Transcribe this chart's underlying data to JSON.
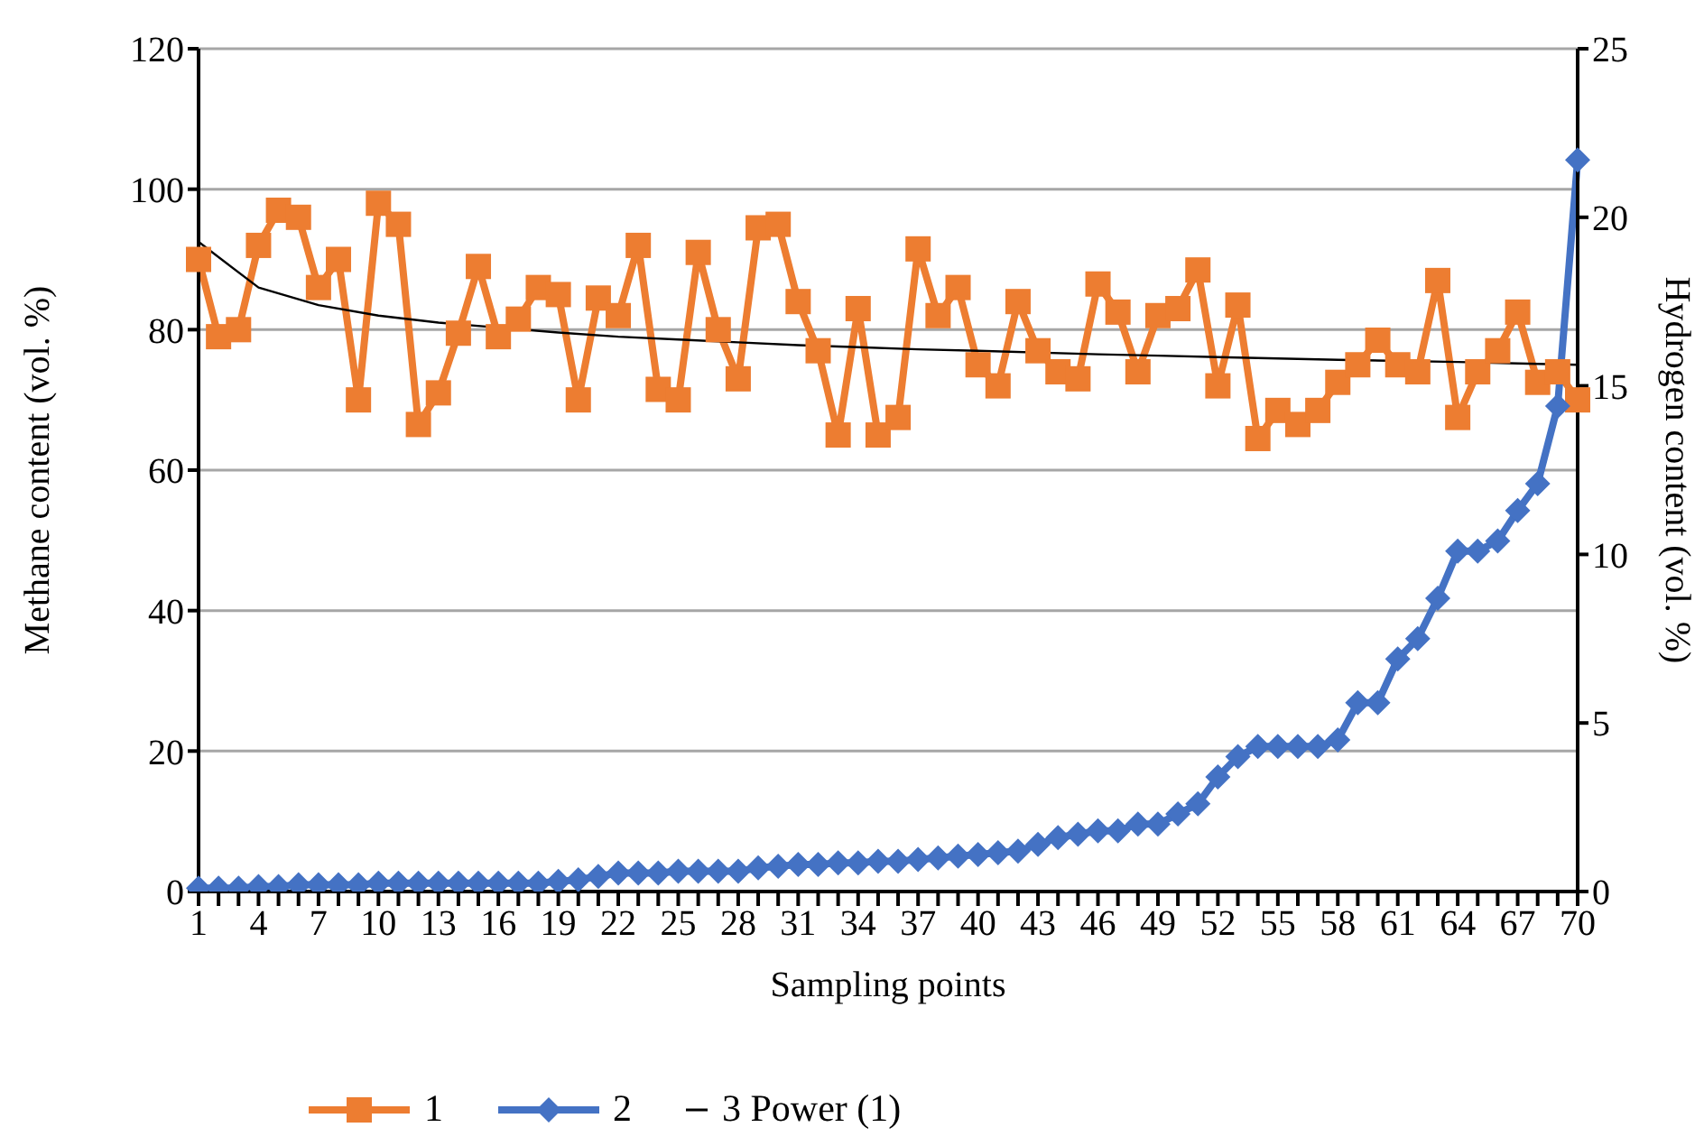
{
  "chart_data": {
    "type": "line",
    "xlabel": "Sampling points",
    "ylabel": "Methane content (vol. %)",
    "y2label": "Hydrogen content (vol. %)",
    "categories": [
      "1",
      null,
      null,
      "4",
      null,
      null,
      "7",
      null,
      null,
      "10",
      null,
      null,
      "13",
      null,
      null,
      "16",
      null,
      null,
      "19",
      null,
      null,
      "22",
      null,
      null,
      "25",
      null,
      null,
      "28",
      null,
      null,
      "31",
      null,
      null,
      "34",
      null,
      null,
      "37",
      null,
      null,
      "40",
      null,
      null,
      "43",
      null,
      null,
      "46",
      null,
      null,
      "49",
      null,
      null,
      "52",
      null,
      null,
      "55",
      null,
      null,
      "58",
      null,
      null,
      "61",
      null,
      null,
      "64",
      null,
      null,
      "67",
      null,
      null,
      "70"
    ],
    "series": [
      {
        "name": "1",
        "color": "#ed7d31",
        "marker": "square",
        "values": [
          90,
          79,
          80,
          92,
          97,
          96,
          86,
          90,
          70,
          98,
          95,
          66.5,
          71,
          79.5,
          89,
          79,
          81.5,
          86,
          85,
          70,
          84.5,
          82,
          92,
          71.5,
          70,
          91,
          80,
          73,
          94.5,
          95,
          84,
          77,
          65,
          83,
          65,
          67.5,
          91.5,
          82,
          86,
          75,
          72,
          84,
          77,
          74,
          73,
          86.5,
          82.5,
          74,
          82,
          83,
          88.5,
          72,
          83.5,
          64.5,
          68.5,
          66.5,
          68.5,
          72.5,
          75,
          78.5,
          75,
          74,
          87,
          67.5,
          74,
          77,
          82.5,
          72.5,
          74,
          70
        ]
      },
      {
        "name": "2",
        "color": "#4472c4",
        "marker": "diamond",
        "axis": "y2",
        "values": [
          0.1,
          0.1,
          0.1,
          0.15,
          0.15,
          0.2,
          0.2,
          0.2,
          0.2,
          0.25,
          0.25,
          0.25,
          0.25,
          0.25,
          0.25,
          0.25,
          0.25,
          0.25,
          0.3,
          0.35,
          0.45,
          0.55,
          0.55,
          0.55,
          0.6,
          0.6,
          0.6,
          0.6,
          0.7,
          0.75,
          0.8,
          0.8,
          0.85,
          0.85,
          0.9,
          0.9,
          0.95,
          1,
          1.05,
          1.1,
          1.15,
          1.2,
          1.4,
          1.6,
          1.7,
          1.8,
          1.8,
          2,
          2,
          2.3,
          2.6,
          3.4,
          4,
          4.3,
          4.3,
          4.3,
          4.3,
          4.5,
          5.6,
          5.6,
          6.9,
          7.5,
          8.7,
          10.1,
          10.1,
          10.4,
          11.3,
          12.1,
          14.4,
          21.7
        ]
      },
      {
        "name": "3 Power (1)",
        "color": "#000000",
        "marker": "none",
        "values": [
          92.5,
          null,
          null,
          86,
          null,
          null,
          83.5,
          null,
          null,
          82,
          null,
          null,
          81,
          null,
          null,
          null,
          null,
          null,
          79.6,
          null,
          null,
          79,
          null,
          null,
          78.6,
          null,
          null,
          78.2,
          null,
          null,
          77.8,
          null,
          null,
          77.5,
          null,
          null,
          77.2,
          null,
          null,
          77,
          null,
          null,
          null,
          null,
          null,
          76.5,
          null,
          null,
          76.3,
          null,
          null,
          76.1,
          null,
          null,
          75.9,
          null,
          null,
          75.7,
          null,
          null,
          null,
          null,
          null,
          75.4,
          null,
          null,
          75.2,
          null,
          null,
          75
        ]
      }
    ],
    "ylim": [
      0,
      120
    ],
    "yticks": [
      0,
      20,
      40,
      60,
      80,
      100,
      120
    ],
    "y2lim": [
      0,
      25
    ],
    "y2ticks": [
      0,
      5,
      10,
      15,
      20,
      25
    ],
    "grid": "y",
    "legend": "bottom left"
  }
}
